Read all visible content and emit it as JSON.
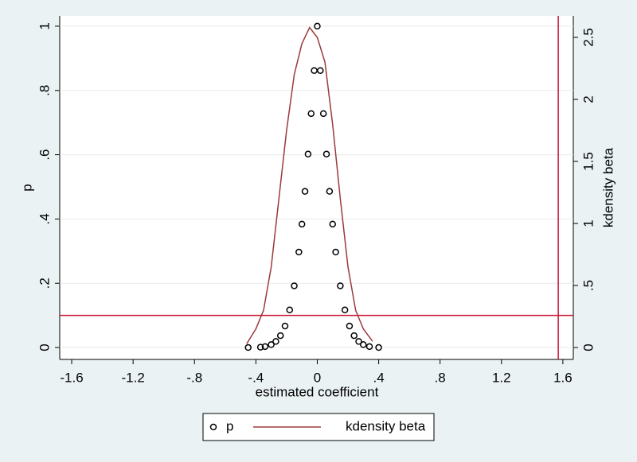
{
  "chart_data": {
    "type": "scatter",
    "x_label": "estimated coefficient",
    "y_label": "p",
    "y2_label": "kdensity beta",
    "xlim": [
      -1.678,
      1.668
    ],
    "ylim": [
      -0.037,
      1.032
    ],
    "y2lim": [
      -0.096,
      2.673
    ],
    "xticks": [
      -1.6,
      -1.2,
      {
        "value": -0.8,
        "label": "-.8"
      },
      {
        "value": -0.4,
        "label": "-.4"
      },
      0,
      {
        "value": 0.4,
        "label": ".4"
      },
      {
        "value": 0.8,
        "label": ".8"
      },
      1.2,
      1.6
    ],
    "yticks": [
      0,
      {
        "value": 0.2,
        "label": ".2"
      },
      {
        "value": 0.4,
        "label": ".4"
      },
      {
        "value": 0.6,
        "label": ".6"
      },
      {
        "value": 0.8,
        "label": ".8"
      },
      1
    ],
    "y2ticks": [
      0,
      {
        "value": 0.5,
        "label": ".5"
      },
      1,
      1.5,
      2,
      2.5
    ],
    "grid": true,
    "series": [
      {
        "name": "p",
        "type": "scatter",
        "color": "#000000",
        "x": [
          -0.45,
          -0.37,
          -0.34,
          -0.3,
          -0.27,
          -0.24,
          -0.21,
          -0.18,
          -0.15,
          -0.12,
          -0.1,
          -0.08,
          -0.06,
          -0.04,
          -0.02,
          0,
          0.02,
          0.04,
          0.06,
          0.08,
          0.1,
          0.12,
          0.15,
          0.18,
          0.21,
          0.24,
          0.27,
          0.3,
          0.34,
          0.4
        ],
        "values": [
          0.0,
          0.001,
          0.003,
          0.009,
          0.019,
          0.037,
          0.067,
          0.117,
          0.192,
          0.297,
          0.384,
          0.486,
          0.602,
          0.728,
          0.862,
          1,
          0.862,
          0.728,
          0.602,
          0.486,
          0.384,
          0.297,
          0.192,
          0.117,
          0.067,
          0.037,
          0.019,
          0.009,
          0.003,
          0.0
        ]
      },
      {
        "name": "kdensity beta",
        "type": "line",
        "axis": "y2",
        "color": "#9b3a3a",
        "x": [
          -0.46,
          -0.4,
          -0.35,
          -0.3,
          -0.25,
          -0.2,
          -0.15,
          -0.1,
          -0.05,
          0,
          0.05,
          0.1,
          0.15,
          0.2,
          0.25,
          0.3,
          0.36
        ],
        "values": [
          0.03,
          0.15,
          0.3,
          0.65,
          1.2,
          1.75,
          2.2,
          2.45,
          2.58,
          2.5,
          2.3,
          1.8,
          1.2,
          0.65,
          0.3,
          0.15,
          0.05
        ]
      }
    ],
    "hlines": [
      {
        "value": 0.1,
        "color": "#c8102e"
      }
    ],
    "vlines": [
      {
        "value": 1.57,
        "color": "#c8102e"
      }
    ]
  }
}
